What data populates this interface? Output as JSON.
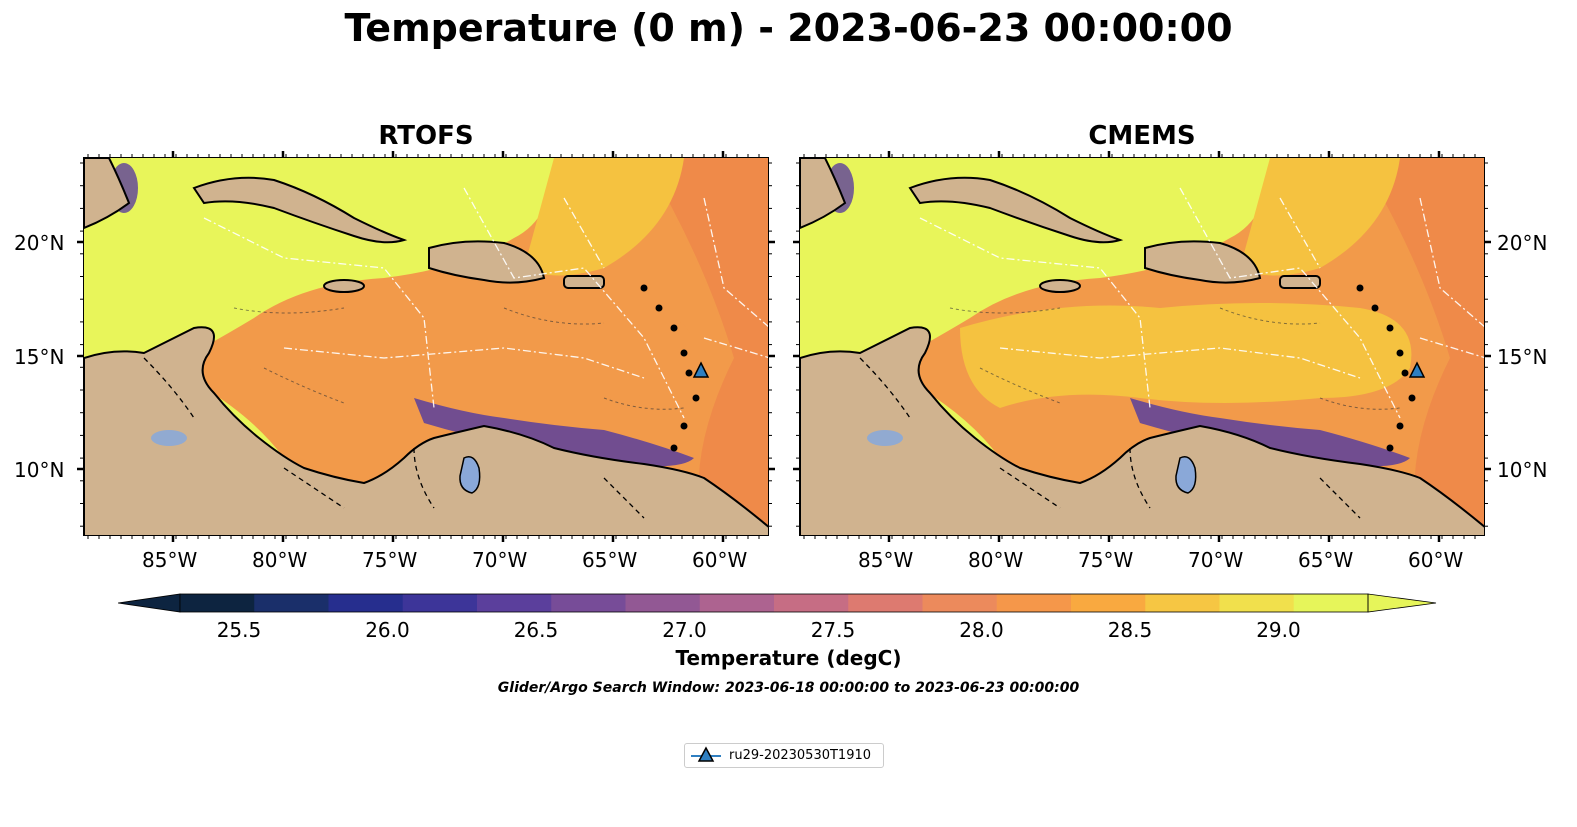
{
  "figure": {
    "title": "Temperature (0 m) - 2023-06-23 00:00:00"
  },
  "panels": [
    {
      "title": "RTOFS"
    },
    {
      "title": "CMEMS"
    }
  ],
  "axes": {
    "lon_ticks": [
      "85°W",
      "80°W",
      "75°W",
      "70°W",
      "65°W",
      "60°W"
    ],
    "lat_ticks": [
      "20°N",
      "15°N",
      "10°N"
    ]
  },
  "colorbar": {
    "label": "Temperature (degC)",
    "tick_labels": [
      "25.5",
      "26.0",
      "26.5",
      "27.0",
      "27.5",
      "28.0",
      "28.5",
      "29.0"
    ],
    "colors": [
      "#0d2440",
      "#1a2f6a",
      "#262e8e",
      "#3d3599",
      "#5b3f9c",
      "#774c98",
      "#925894",
      "#ad6390",
      "#c66d84",
      "#dd7a70",
      "#ec8a5c",
      "#f5974a",
      "#f9a940",
      "#f6c643",
      "#f1e04c",
      "#e6f55a"
    ]
  },
  "search_window": "Glider/Argo Search Window: 2023-06-18 00:00:00 to 2023-06-23 00:00:00",
  "legend": {
    "label": "ru29-20230530T1910",
    "marker_color": "#2f7fc1"
  },
  "colors": {
    "land": "#d0b38f",
    "lake": "#8aa8d8",
    "warm_sea": "#f29a4a",
    "hot_sea": "#ef8a49",
    "cool_sea": "#e8f55a",
    "mid_sea": "#f5c240",
    "cold_band": "#5b3f9c"
  }
}
